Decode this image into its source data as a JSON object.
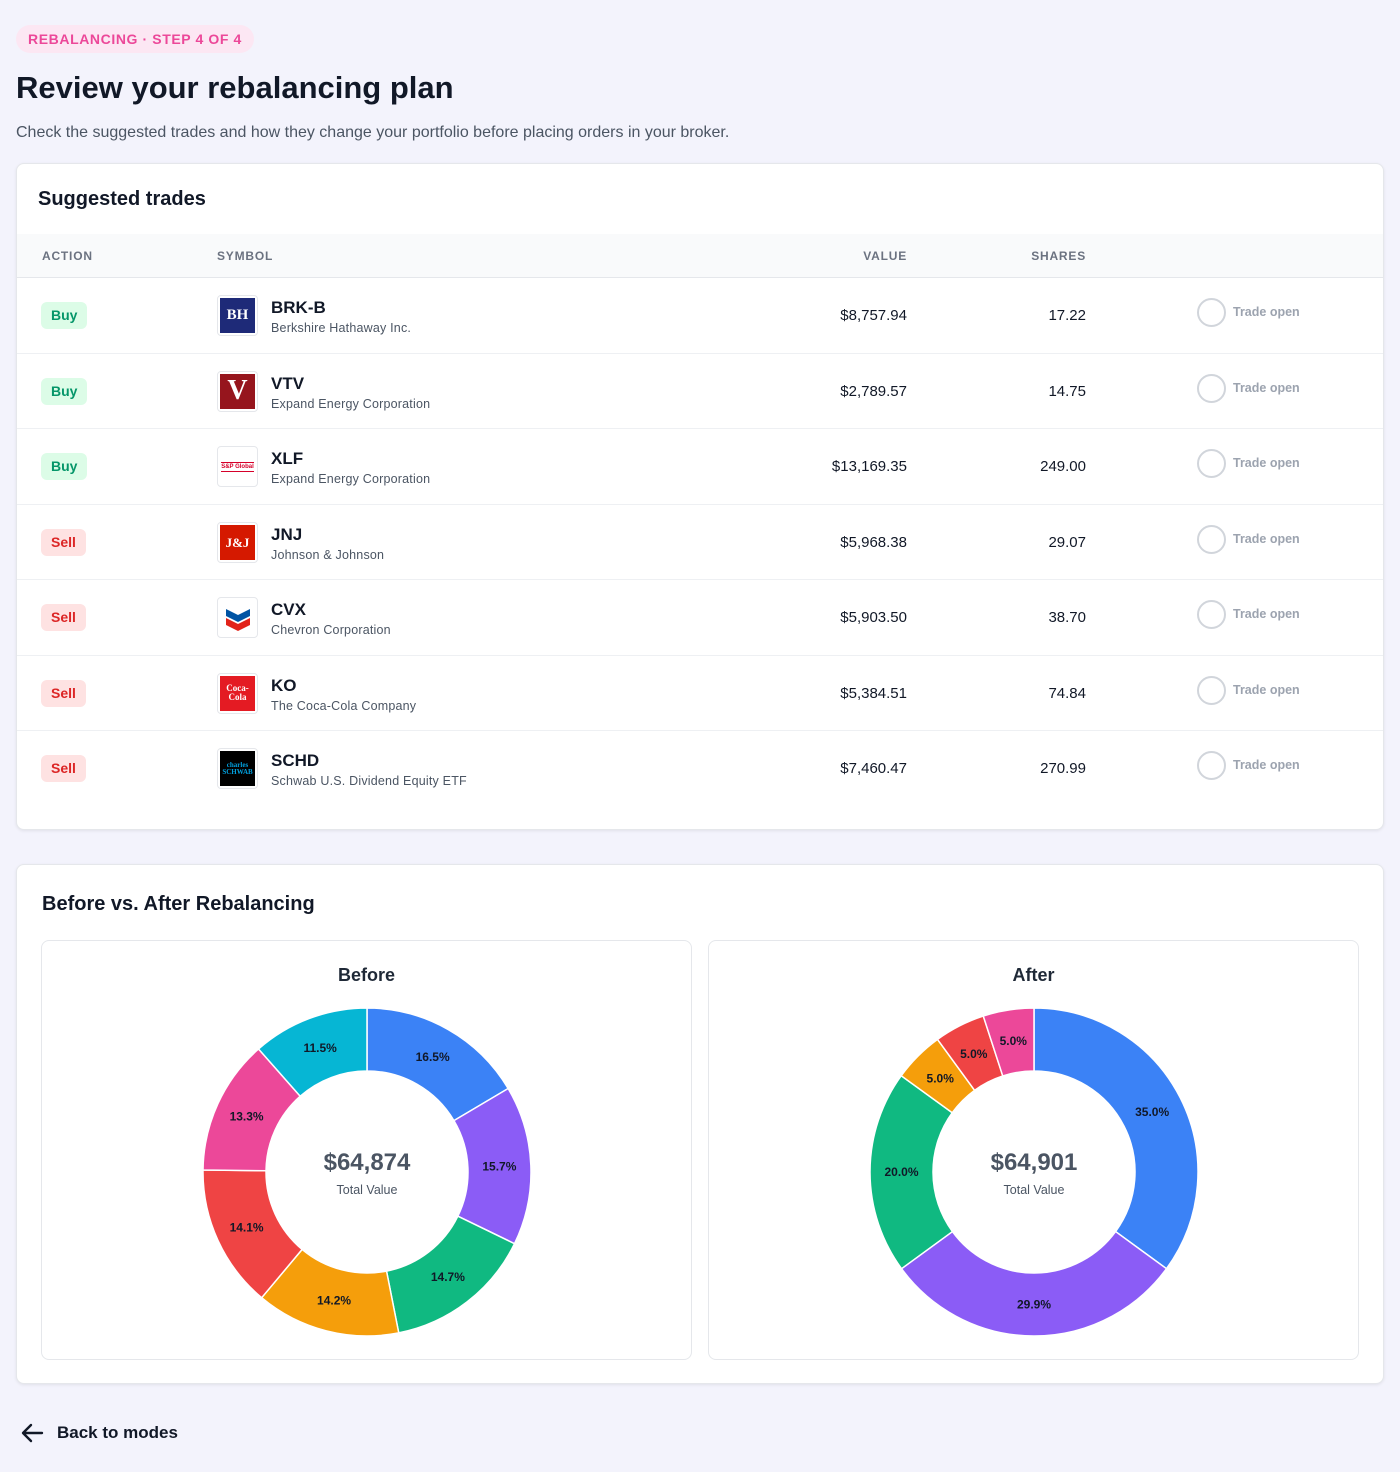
{
  "header": {
    "step_badge": "REBALANCING · STEP 4 OF 4",
    "title": "Review your rebalancing plan",
    "subtitle": "Check the suggested trades and how they change your portfolio before placing orders in your broker."
  },
  "trades": {
    "title": "Suggested trades",
    "columns": {
      "action": "ACTION",
      "symbol": "SYMBOL",
      "value": "VALUE",
      "shares": "SHARES"
    },
    "trade_label": "Trade open",
    "rows": [
      {
        "action": "Buy",
        "type": "buy",
        "symbol": "BRK-B",
        "company": "Berkshire Hathaway Inc.",
        "value": "$8,757.94",
        "shares": "17.22",
        "logo": "berkshire-logo",
        "logo_text": "BH"
      },
      {
        "action": "Buy",
        "type": "buy",
        "symbol": "VTV",
        "company": "Expand Energy Corporation",
        "value": "$2,789.57",
        "shares": "14.75",
        "logo": "vanguard-logo",
        "logo_text": "V"
      },
      {
        "action": "Buy",
        "type": "buy",
        "symbol": "XLF",
        "company": "Expand Energy Corporation",
        "value": "$13,169.35",
        "shares": "249.00",
        "logo": "sp-global-logo",
        "logo_text": "S&P Global"
      },
      {
        "action": "Sell",
        "type": "sell",
        "symbol": "JNJ",
        "company": "Johnson & Johnson",
        "value": "$5,968.38",
        "shares": "29.07",
        "logo": "jnj-logo",
        "logo_text": "J&J"
      },
      {
        "action": "Sell",
        "type": "sell",
        "symbol": "CVX",
        "company": "Chevron Corporation",
        "value": "$5,903.50",
        "shares": "38.70",
        "logo": "chevron-logo",
        "logo_text": ""
      },
      {
        "action": "Sell",
        "type": "sell",
        "symbol": "KO",
        "company": "The Coca-Cola Company",
        "value": "$5,384.51",
        "shares": "74.84",
        "logo": "coca-cola-logo",
        "logo_text": "Coca-Cola"
      },
      {
        "action": "Sell",
        "type": "sell",
        "symbol": "SCHD",
        "company": "Schwab U.S. Dividend Equity ETF",
        "value": "$7,460.47",
        "shares": "270.99",
        "logo": "schwab-logo",
        "logo_text": "charles SCHWAB"
      }
    ]
  },
  "comparison": {
    "title": "Before vs. After Rebalancing",
    "total_label": "Total Value"
  },
  "chart_data": [
    {
      "type": "pie",
      "title": "Before",
      "center_value": "$64,874",
      "center_label": "Total Value",
      "values": [
        16.5,
        15.7,
        14.7,
        14.2,
        14.1,
        13.3,
        11.5
      ],
      "labels": [
        "16.5%",
        "15.7%",
        "14.7%",
        "14.2%",
        "14.1%",
        "13.3%",
        "11.5%"
      ],
      "colors": [
        "#3b82f6",
        "#8b5cf6",
        "#10b981",
        "#f59e0b",
        "#ef4444",
        "#ec4899",
        "#06b6d4"
      ]
    },
    {
      "type": "pie",
      "title": "After",
      "center_value": "$64,901",
      "center_label": "Total Value",
      "values": [
        35.0,
        29.9,
        20.0,
        5.0,
        5.0,
        5.0
      ],
      "labels": [
        "35.0%",
        "29.9%",
        "20.0%",
        "5.0%",
        "5.0%",
        "5.0%"
      ],
      "colors": [
        "#3b82f6",
        "#8b5cf6",
        "#10b981",
        "#f59e0b",
        "#ef4444",
        "#ec4899"
      ]
    }
  ],
  "footer": {
    "back_label": "Back to modes"
  }
}
